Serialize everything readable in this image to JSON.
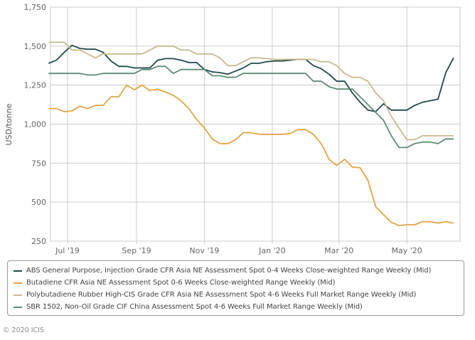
{
  "chart_data": {
    "type": "line",
    "title": "",
    "xlabel": "",
    "ylabel": "USD/tonne",
    "ylim": [
      250,
      1750
    ],
    "yticks": [
      250,
      500,
      750,
      1000,
      1250,
      1500,
      1750
    ],
    "ytick_labels": [
      "250",
      "500",
      "750",
      "1,000",
      "1,250",
      "1,500",
      "1,750"
    ],
    "xtick_labels": [
      "Jul '19",
      "Sep '19",
      "Nov '19",
      "Jan '20",
      "Mar '20",
      "May '20"
    ],
    "x_start": "2019-06-14",
    "x_step_days": 7,
    "grid": true,
    "legend_position": "bottom",
    "series": [
      {
        "name": "ABS General Purpose, Injection Grade CFR Asia NE Assessment Spot 0-4 Weeks Close-weighted Range Weekly (Mid)",
        "color": "#1f4a4a",
        "values": [
          1390,
          1410,
          1460,
          1505,
          1485,
          1480,
          1480,
          1460,
          1405,
          1370,
          1370,
          1360,
          1360,
          1360,
          1410,
          1420,
          1420,
          1410,
          1395,
          1395,
          1350,
          1335,
          1330,
          1320,
          1340,
          1360,
          1390,
          1390,
          1400,
          1405,
          1405,
          1410,
          1415,
          1415,
          1375,
          1355,
          1320,
          1275,
          1275,
          1200,
          1140,
          1090,
          1080,
          1130,
          1090,
          1090,
          1090,
          1120,
          1140,
          1150,
          1160,
          1330,
          1425
        ]
      },
      {
        "name": "Butadiene CFR Asia NE Assessment Spot 0-6 Weeks Close-weighted Range Weekly (Mid)",
        "color": "#e3a443",
        "values": [
          1100,
          1100,
          1080,
          1085,
          1115,
          1100,
          1120,
          1120,
          1175,
          1175,
          1250,
          1220,
          1250,
          1215,
          1225,
          1205,
          1185,
          1150,
          1100,
          1030,
          975,
          905,
          875,
          875,
          900,
          945,
          945,
          935,
          935,
          935,
          935,
          940,
          965,
          965,
          935,
          875,
          775,
          735,
          775,
          725,
          720,
          640,
          470,
          420,
          370,
          350,
          355,
          355,
          375,
          375,
          365,
          375,
          365
        ]
      },
      {
        "name": "Polybutadiene Rubber High-CIS Grade CFR Asia NE Assessment Spot 4-6 Weeks Full Market Range Weekly (Mid)",
        "color": "#c7b98f",
        "values": [
          1525,
          1525,
          1525,
          1475,
          1475,
          1450,
          1425,
          1450,
          1450,
          1450,
          1450,
          1450,
          1450,
          1475,
          1500,
          1500,
          1500,
          1475,
          1475,
          1450,
          1450,
          1450,
          1425,
          1375,
          1375,
          1400,
          1425,
          1425,
          1420,
          1415,
          1415,
          1415,
          1415,
          1415,
          1415,
          1400,
          1400,
          1375,
          1325,
          1300,
          1300,
          1275,
          1200,
          1150,
          1050,
          975,
          900,
          900,
          925,
          925,
          925,
          925,
          925
        ]
      },
      {
        "name": "SBR 1502, Non-Oil Grade CIF China Assessment Spot 4-6 Weeks Full Market Range Weekly (Mid)",
        "color": "#5d8c74",
        "values": [
          1325,
          1325,
          1325,
          1325,
          1325,
          1315,
          1315,
          1325,
          1325,
          1325,
          1325,
          1325,
          1350,
          1350,
          1370,
          1370,
          1325,
          1350,
          1350,
          1350,
          1350,
          1310,
          1310,
          1300,
          1300,
          1325,
          1325,
          1325,
          1325,
          1325,
          1325,
          1325,
          1325,
          1325,
          1275,
          1275,
          1240,
          1225,
          1225,
          1225,
          1175,
          1125,
          1075,
          1025,
          925,
          850,
          850,
          875,
          885,
          885,
          875,
          905,
          905
        ]
      }
    ]
  },
  "legend": {
    "items": [
      "ABS General Purpose, Injection Grade CFR Asia NE Assessment Spot 0-4 Weeks Close-weighted Range Weekly (Mid)",
      "Butadiene CFR Asia NE Assessment Spot 0-6 Weeks Close-weighted Range Weekly (Mid)",
      "Polybutadiene Rubber High-CIS Grade CFR Asia NE Assessment Spot 4-6 Weeks Full Market Range Weekly (Mid)",
      "SBR 1502, Non-Oil Grade CIF China Assessment Spot 4-6 Weeks Full Market Range Weekly (Mid)"
    ]
  },
  "footer": {
    "copyright": "© 2020 ICIS"
  }
}
